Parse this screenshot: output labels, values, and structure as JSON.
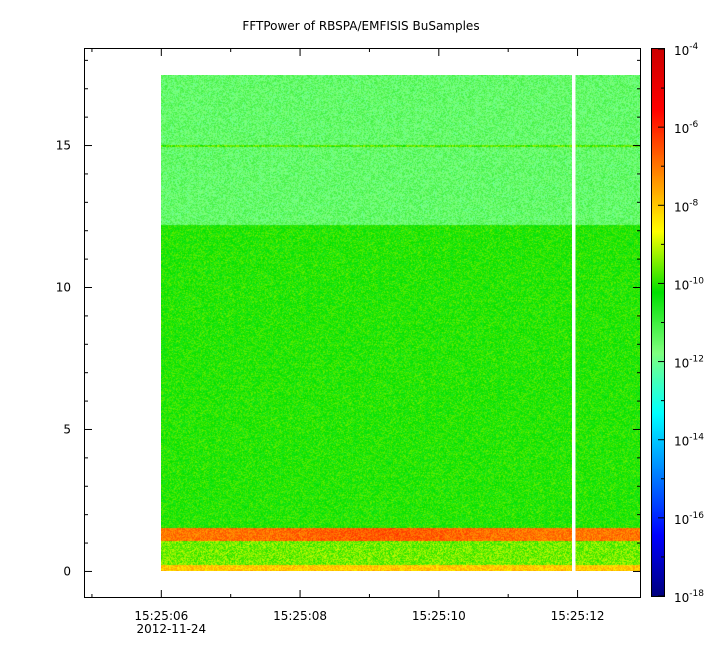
{
  "chart_data": {
    "type": "heatmap",
    "title": "FFTPower of RBSPA/EMFISIS  BuSamples",
    "xlabel": "",
    "ylabel": "",
    "x": {
      "ticks": [
        "15:25:06",
        "15:25:08",
        "15:25:10",
        "15:25:12"
      ],
      "tick_seconds": [
        6,
        8,
        10,
        12
      ],
      "date_label": "2012-11-24",
      "range_seconds": [
        4.9,
        12.9
      ],
      "data_start_seconds": 6.0,
      "data_end_seconds": 12.9,
      "gaps_seconds": [
        [
          11.92,
          11.97
        ]
      ]
    },
    "y": {
      "ticks": [
        0,
        5,
        10,
        15
      ],
      "range": [
        -0.9,
        18.4
      ],
      "data_range": [
        0,
        17.5
      ]
    },
    "colorbar": {
      "scale": "log",
      "range": [
        1e-18,
        0.0001
      ],
      "tick_exponents": [
        -18,
        -16,
        -14,
        -12,
        -10,
        -8,
        -6,
        -4
      ],
      "colormap": [
        "#00007f",
        "#0000ff",
        "#007fff",
        "#00ffff",
        "#7fff7f",
        "#00e000",
        "#ffff00",
        "#ff7f00",
        "#ff0000",
        "#cc0000"
      ]
    },
    "bands": [
      {
        "y": [
          0,
          0.2
        ],
        "level": 1e-08
      },
      {
        "y": [
          0.2,
          1.05
        ],
        "level": 3e-10
      },
      {
        "y": [
          1.05,
          1.5
        ],
        "level": 1e-07
      },
      {
        "y": [
          1.5,
          12.2
        ],
        "level": 8e-11
      },
      {
        "y": [
          12.2,
          17.5
        ],
        "level": 3e-12
      }
    ],
    "lines": [
      {
        "y": 15.0,
        "level": 2e-10
      }
    ]
  }
}
